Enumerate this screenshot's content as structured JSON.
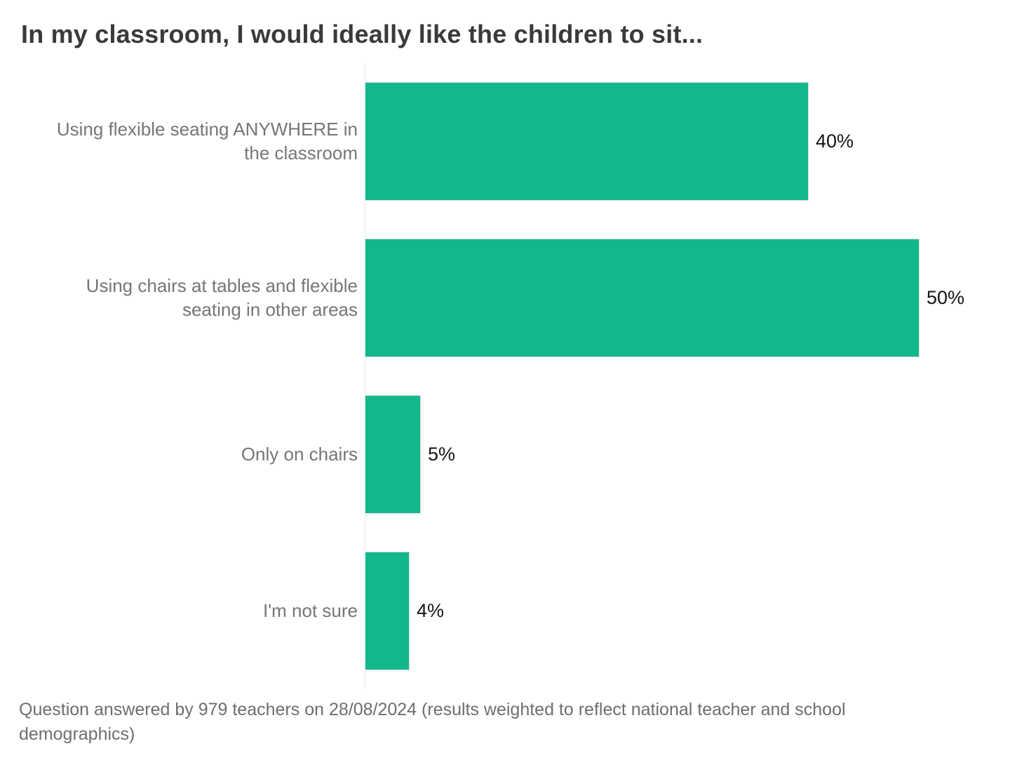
{
  "title": "In my classroom, I would ideally like the children to sit...",
  "footnote": "Question answered by 979 teachers on 28/08/2024 (results weighted to reflect national teacher and school demographics)",
  "colors": {
    "background": "#FFFFFF",
    "bar": "#12B88C",
    "bar_border": "#DBDBDB",
    "title_text": "#3A3A3A",
    "category_text": "#767676",
    "value_text": "#141414",
    "axis_line": "#CFCFCF",
    "footnote_text": "#6E6E6E"
  },
  "chart_data": {
    "type": "bar",
    "orientation": "horizontal",
    "title": "In my classroom, I would ideally like the children to sit...",
    "categories": [
      "Using flexible seating ANYWHERE in the classroom",
      "Using chairs at tables and flexible seating in other areas",
      "Only on chairs",
      "I'm not sure"
    ],
    "values": [
      40,
      50,
      5,
      4
    ],
    "value_labels": [
      "40%",
      "50%",
      "5%",
      "4%"
    ],
    "unit": "%",
    "xlim": [
      0,
      58.2
    ],
    "grid": false,
    "legend": false,
    "bar_color": "#12B88C",
    "annotation": "Question answered by 979 teachers on 28/08/2024 (results weighted to reflect national teacher and school demographics)"
  }
}
